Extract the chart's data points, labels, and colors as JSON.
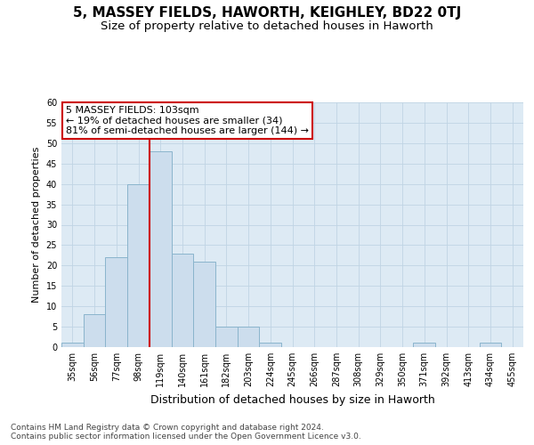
{
  "title": "5, MASSEY FIELDS, HAWORTH, KEIGHLEY, BD22 0TJ",
  "subtitle": "Size of property relative to detached houses in Haworth",
  "xlabel": "Distribution of detached houses by size in Haworth",
  "ylabel": "Number of detached properties",
  "categories": [
    "35sqm",
    "56sqm",
    "77sqm",
    "98sqm",
    "119sqm",
    "140sqm",
    "161sqm",
    "182sqm",
    "203sqm",
    "224sqm",
    "245sqm",
    "266sqm",
    "287sqm",
    "308sqm",
    "329sqm",
    "350sqm",
    "371sqm",
    "392sqm",
    "413sqm",
    "434sqm",
    "455sqm"
  ],
  "bar_values": [
    1,
    8,
    22,
    40,
    48,
    23,
    21,
    5,
    5,
    1,
    0,
    0,
    0,
    0,
    0,
    0,
    1,
    0,
    0,
    1,
    0
  ],
  "bar_color": "#ccdded",
  "bar_edgecolor": "#8ab4cc",
  "vline_x": 3.5,
  "vline_color": "#cc0000",
  "annotation_line1": "5 MASSEY FIELDS: 103sqm",
  "annotation_line2": "← 19% of detached houses are smaller (34)",
  "annotation_line3": "81% of semi-detached houses are larger (144) →",
  "annotation_box_edgecolor": "#cc0000",
  "annotation_box_facecolor": "#ffffff",
  "ylim": [
    0,
    60
  ],
  "yticks": [
    0,
    5,
    10,
    15,
    20,
    25,
    30,
    35,
    40,
    45,
    50,
    55,
    60
  ],
  "grid_color": "#c0d4e4",
  "background_color": "#ddeaf4",
  "footer_line1": "Contains HM Land Registry data © Crown copyright and database right 2024.",
  "footer_line2": "Contains public sector information licensed under the Open Government Licence v3.0.",
  "title_fontsize": 11,
  "subtitle_fontsize": 9.5,
  "xlabel_fontsize": 9,
  "ylabel_fontsize": 8,
  "tick_fontsize": 7,
  "annotation_fontsize": 8,
  "footer_fontsize": 6.5
}
